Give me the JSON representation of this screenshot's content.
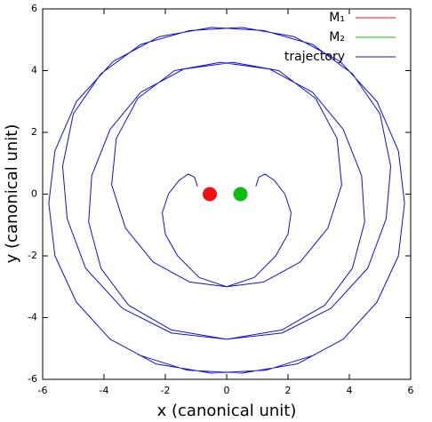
{
  "chart_data": {
    "type": "line",
    "xlabel": "x (canonical unit)",
    "ylabel": "y (canonical unit)",
    "xlim": [
      -6,
      6
    ],
    "ylim": [
      -6,
      6
    ],
    "xticks": [
      -6,
      -4,
      -2,
      0,
      2,
      4,
      6
    ],
    "yticks": [
      -6,
      -4,
      -2,
      0,
      2,
      4,
      6
    ],
    "grid": false,
    "legend": "top-right",
    "series": [
      {
        "name": "M₁",
        "color": "#ee1111",
        "style": "points",
        "x": [
          -0.55
        ],
        "y": [
          0
        ]
      },
      {
        "name": "M₂",
        "color": "#11bb11",
        "style": "points",
        "x": [
          0.45
        ],
        "y": [
          0
        ]
      },
      {
        "name": "trajectory",
        "color": "#1010e0",
        "style": "lines",
        "x": [
          -0.95,
          -1.05,
          -1.25,
          -1.55,
          -1.9,
          -2.1,
          -2.0,
          -1.6,
          -0.9,
          0,
          1.2,
          2.4,
          3.3,
          3.75,
          3.6,
          2.9,
          1.7,
          0.2,
          -1.4,
          -2.8,
          -3.8,
          -4.4,
          -4.5,
          -4.1,
          -3.2,
          -1.8,
          0,
          1.8,
          3.4,
          4.6,
          5.2,
          5.35,
          5.0,
          4.1,
          2.8,
          1.2,
          -0.5,
          -2.2,
          -3.7,
          -4.9,
          -5.6,
          -5.8,
          -5.6,
          -4.9,
          -3.8,
          -2.3,
          -0.5,
          1.3,
          2.9,
          null,
          0.95,
          1.05,
          1.25,
          1.55,
          1.9,
          2.1,
          2.0,
          1.6,
          0.9,
          0,
          -1.2,
          -2.4,
          -3.3,
          -3.75,
          -3.6,
          -2.9,
          -1.7,
          -0.2,
          1.4,
          2.8,
          3.8,
          4.4,
          4.5,
          4.1,
          3.2,
          1.8,
          0,
          -1.8,
          -3.4,
          -4.6,
          -5.2,
          -5.35,
          -5.0,
          -4.1,
          -2.8,
          -1.2,
          0.5,
          2.2,
          3.7,
          4.9,
          5.6,
          5.8,
          5.6,
          4.9,
          3.8,
          2.3,
          0.5,
          -1.3,
          -2.9
        ],
        "y": [
          0.25,
          0.55,
          0.65,
          0.45,
          0,
          -0.6,
          -1.3,
          -2.0,
          -2.7,
          -3.0,
          -2.85,
          -2.2,
          -1.1,
          0.3,
          1.8,
          3.1,
          4.0,
          4.27,
          4.05,
          3.3,
          2.1,
          0.6,
          -0.9,
          -2.4,
          -3.6,
          -4.4,
          -4.7,
          -4.5,
          -3.7,
          -2.4,
          -0.8,
          0.9,
          2.6,
          3.9,
          4.85,
          5.3,
          5.4,
          5.1,
          4.3,
          3.0,
          1.4,
          -0.3,
          -2.0,
          -3.5,
          -4.7,
          -5.5,
          -5.8,
          -5.7,
          -5.2,
          null,
          0.25,
          0.55,
          0.65,
          0.45,
          0,
          -0.6,
          -1.3,
          -2.0,
          -2.7,
          -3.0,
          -2.85,
          -2.2,
          -1.1,
          0.3,
          1.8,
          3.1,
          4.0,
          4.27,
          4.05,
          3.3,
          2.1,
          0.6,
          -0.9,
          -2.4,
          -3.6,
          -4.4,
          -4.7,
          -4.5,
          -3.7,
          -2.4,
          -0.8,
          0.9,
          2.6,
          3.9,
          4.85,
          5.3,
          5.4,
          5.1,
          4.3,
          3.0,
          1.4,
          -0.3,
          -2.0,
          -3.5,
          -4.7,
          -5.5,
          -5.8,
          -5.7,
          -5.2
        ]
      }
    ]
  }
}
